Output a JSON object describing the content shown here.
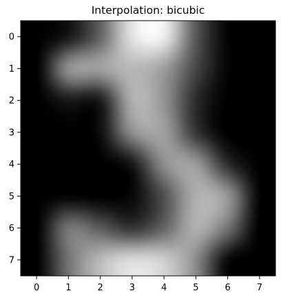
{
  "chart_data": {
    "type": "heatmap",
    "title": "Interpolation: bicubic",
    "interpolation": "bicubic",
    "colormap": "gray",
    "x_ticks": [
      "0",
      "1",
      "2",
      "3",
      "4",
      "5",
      "6",
      "7"
    ],
    "y_ticks": [
      "0",
      "1",
      "2",
      "3",
      "4",
      "5",
      "6",
      "7"
    ],
    "xlim": [
      -0.5,
      7.5
    ],
    "ylim": [
      7.5,
      -0.5
    ],
    "vmin": 0,
    "vmax": 1,
    "grid": false,
    "matrix": [
      [
        0.0,
        0.1,
        0.4,
        0.88,
        0.92,
        0.35,
        0.02,
        0.0
      ],
      [
        0.0,
        0.55,
        0.62,
        0.72,
        0.62,
        0.28,
        0.02,
        0.0
      ],
      [
        0.0,
        0.1,
        0.12,
        0.68,
        0.58,
        0.18,
        0.0,
        0.0
      ],
      [
        0.0,
        0.0,
        0.06,
        0.55,
        0.62,
        0.22,
        0.0,
        0.0
      ],
      [
        0.0,
        0.0,
        0.0,
        0.1,
        0.55,
        0.6,
        0.18,
        0.0
      ],
      [
        0.0,
        0.02,
        0.0,
        0.04,
        0.32,
        0.68,
        0.58,
        0.02
      ],
      [
        0.0,
        0.45,
        0.36,
        0.22,
        0.4,
        0.68,
        0.45,
        0.0
      ],
      [
        0.0,
        0.45,
        0.72,
        0.85,
        0.8,
        0.55,
        0.05,
        0.0
      ]
    ]
  }
}
